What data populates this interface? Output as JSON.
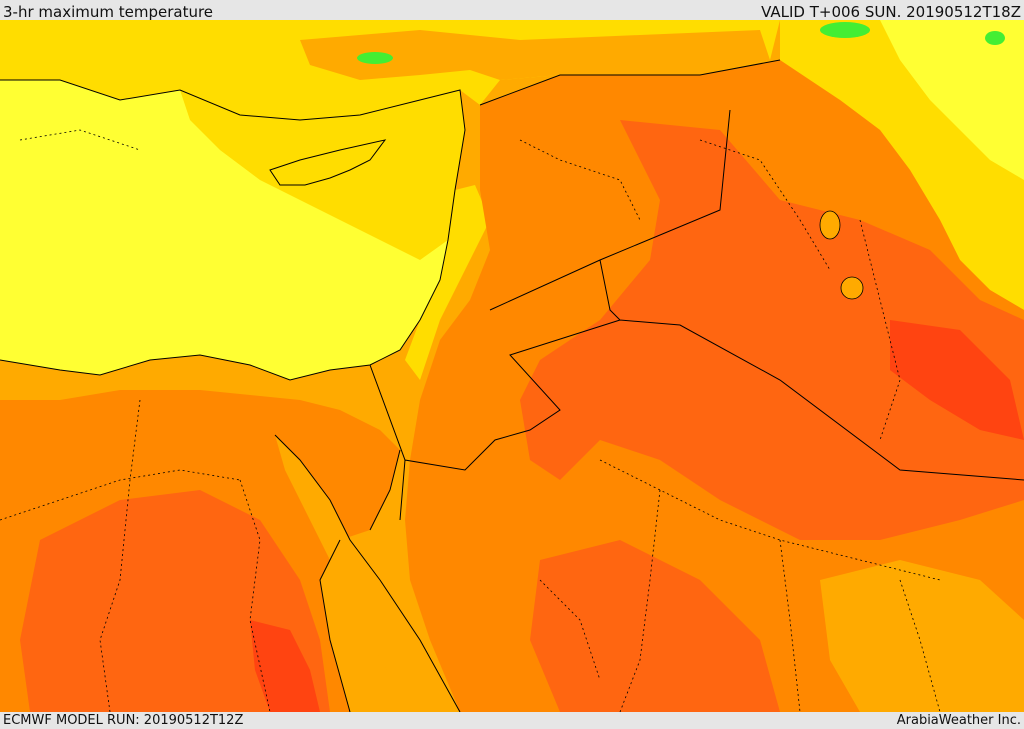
{
  "header": {
    "title": "3-hr maximum temperature",
    "valid": "VALID T+006 SUN. 20190512T18Z"
  },
  "footer": {
    "model_run": "ECMWF MODEL RUN: 20190512T12Z",
    "credit": "ArabiaWeather Inc."
  },
  "colors": {
    "pale_yellow": "#ffff33",
    "yellow": "#ffdd00",
    "light_orange": "#ffaa00",
    "orange": "#ff8800",
    "dark_orange": "#ff6611",
    "red_orange": "#ff4411",
    "green": "#44ee33",
    "border": "#000000"
  }
}
